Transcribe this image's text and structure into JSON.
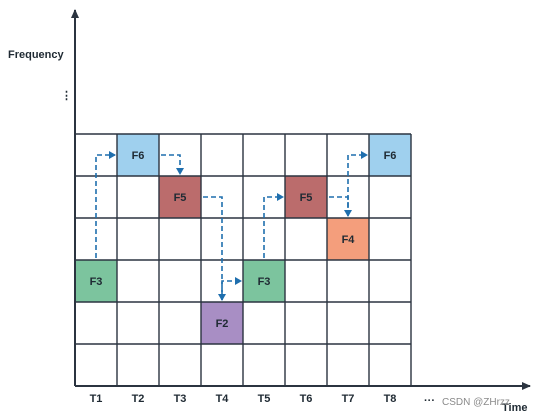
{
  "labels": {
    "y_axis": "Frequency",
    "x_axis": "Time",
    "y_ellipsis": "⋮",
    "x_ellipsis": "···",
    "watermark": "CSDN @ZHrzz"
  },
  "time_slots": [
    "T1",
    "T2",
    "T3",
    "T4",
    "T5",
    "T6",
    "T7",
    "T8"
  ],
  "rows": 6,
  "hops": [
    {
      "label": "F3",
      "time": 1,
      "row": 4,
      "color": "#7cc49e"
    },
    {
      "label": "F6",
      "time": 2,
      "row": 1,
      "color": "#9fd0ee"
    },
    {
      "label": "F5",
      "time": 3,
      "row": 2,
      "color": "#bb6c6c"
    },
    {
      "label": "F2",
      "time": 4,
      "row": 5,
      "color": "#a88ec4"
    },
    {
      "label": "F3",
      "time": 5,
      "row": 4,
      "color": "#7cc49e"
    },
    {
      "label": "F5",
      "time": 6,
      "row": 2,
      "color": "#bb6c6c"
    },
    {
      "label": "F4",
      "time": 7,
      "row": 3,
      "color": "#f49e7c"
    },
    {
      "label": "F6",
      "time": 8,
      "row": 1,
      "color": "#9fd0ee"
    }
  ],
  "colors": {
    "axis": "#2b3440",
    "grid": "#2b3440",
    "path": "#1f6fae"
  }
}
